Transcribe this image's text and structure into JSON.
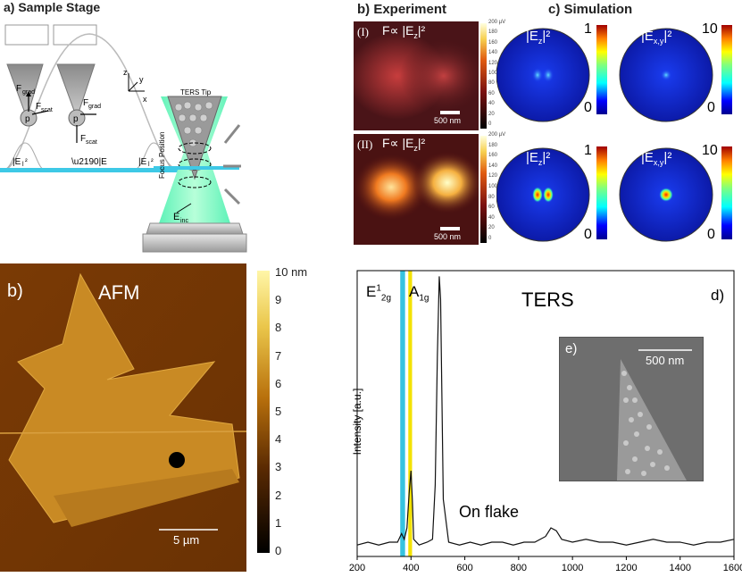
{
  "panel_a": {
    "title": "a) Sample Stage",
    "box1_label": "(I+II)",
    "box2_label": "(III)",
    "f_grad": "F",
    "f_grad_sub": "grad",
    "f_scat": "F",
    "f_scat_sub": "scat",
    "particle": "p",
    "e_grad_left": "|Eₗ|²",
    "e_label": "|Eₗ|²",
    "axis_z": "z",
    "axis_y": "y",
    "axis_x": "x",
    "ters_tip": "TERS Tip",
    "focus_position": "Focus Position",
    "e_inc": "E",
    "e_inc_sub": "inc",
    "colors": {
      "beam": "#2ee6a0",
      "stage": "#3ec9e6",
      "tip": "#9a9a9a"
    }
  },
  "panel_b_top": {
    "title": "b) Experiment",
    "row1_roman": "(I)",
    "row1_formula": "F∝ |E",
    "row1_formula_sub": "z",
    "row1_formula_end": "|²",
    "row2_roman": "(II)",
    "scalebar": "500 nm",
    "colorbar_ticks": [
      "200 µV",
      "180",
      "160",
      "140",
      "120",
      "100",
      "80",
      "60",
      "40",
      "20",
      "0"
    ]
  },
  "panel_c": {
    "title": "c) Simulation",
    "ez_label": "|E",
    "ez_sub": "z",
    "exy_label": "|E",
    "exy_sub": "x,y",
    "bar_end": "|²",
    "ez_max": "1",
    "ez_min": "0",
    "exy_max": "10",
    "exy_min": "0"
  },
  "panel_b_afm": {
    "label": "b)",
    "title": "AFM",
    "scalebar": "5 µm",
    "colorbar_ticks": [
      "10 nm",
      "9",
      "8",
      "7",
      "6",
      "5",
      "4",
      "3",
      "2",
      "1",
      "0"
    ]
  },
  "chart_data": {
    "type": "line",
    "title": "TERS",
    "panel_label": "d)",
    "xlabel": "",
    "ylabel": "Intensity [a.u.]",
    "xlim": [
      200,
      1600
    ],
    "ylim": [
      0,
      1
    ],
    "xticks": [
      "200",
      "400",
      "600",
      "800",
      "1000",
      "1200",
      "1400",
      "1600"
    ],
    "peak_labels": [
      {
        "text": "E",
        "sup": "1",
        "sub": "2g",
        "x": 383
      },
      {
        "text": "A",
        "sub": "1g",
        "x": 404
      }
    ],
    "annotation": "On flake",
    "highlight_bands": [
      {
        "x0": 360,
        "x1": 378,
        "color": "#36c3e0"
      },
      {
        "x0": 390,
        "x1": 404,
        "color": "#f3e200"
      }
    ],
    "series": [
      {
        "name": "On flake",
        "x": [
          200,
          240,
          280,
          320,
          350,
          365,
          375,
          385,
          393,
          400,
          405,
          410,
          430,
          460,
          480,
          490,
          498,
          505,
          510,
          520,
          540,
          580,
          620,
          660,
          700,
          740,
          780,
          820,
          860,
          900,
          920,
          940,
          960,
          1000,
          1050,
          1100,
          1150,
          1200,
          1250,
          1300,
          1350,
          1400,
          1450,
          1500,
          1550,
          1600
        ],
        "y": [
          0.04,
          0.05,
          0.04,
          0.05,
          0.05,
          0.08,
          0.06,
          0.1,
          0.22,
          0.3,
          0.2,
          0.06,
          0.04,
          0.05,
          0.06,
          0.25,
          0.7,
          0.98,
          0.9,
          0.2,
          0.05,
          0.04,
          0.05,
          0.04,
          0.05,
          0.05,
          0.04,
          0.05,
          0.05,
          0.07,
          0.1,
          0.09,
          0.06,
          0.05,
          0.06,
          0.05,
          0.05,
          0.04,
          0.05,
          0.06,
          0.05,
          0.05,
          0.04,
          0.05,
          0.05,
          0.06
        ]
      }
    ]
  },
  "panel_e": {
    "label": "e)",
    "scalebar": "500 nm"
  }
}
